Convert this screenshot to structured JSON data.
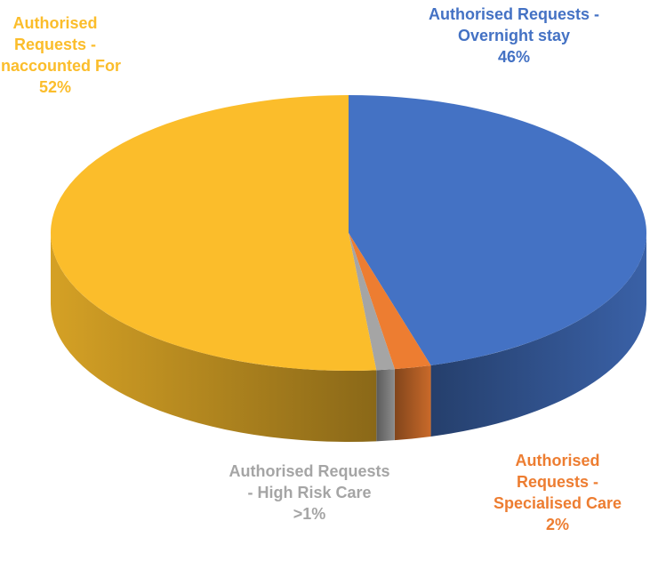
{
  "chart_data": {
    "type": "pie3d",
    "categories": [
      "Authorised Requests - Overnight stay",
      "Authorised Requests - Specialised Care",
      "Authorised Requests - High Risk Care",
      "Authorised Requests - Unaccounted For"
    ],
    "values": [
      46,
      2,
      1,
      52
    ],
    "value_labels": [
      "46%",
      "2%",
      ">1%",
      "52%"
    ],
    "colors": [
      "#4472c4",
      "#ed7d31",
      "#a5a5a5",
      "#fbbd2b"
    ]
  }
}
